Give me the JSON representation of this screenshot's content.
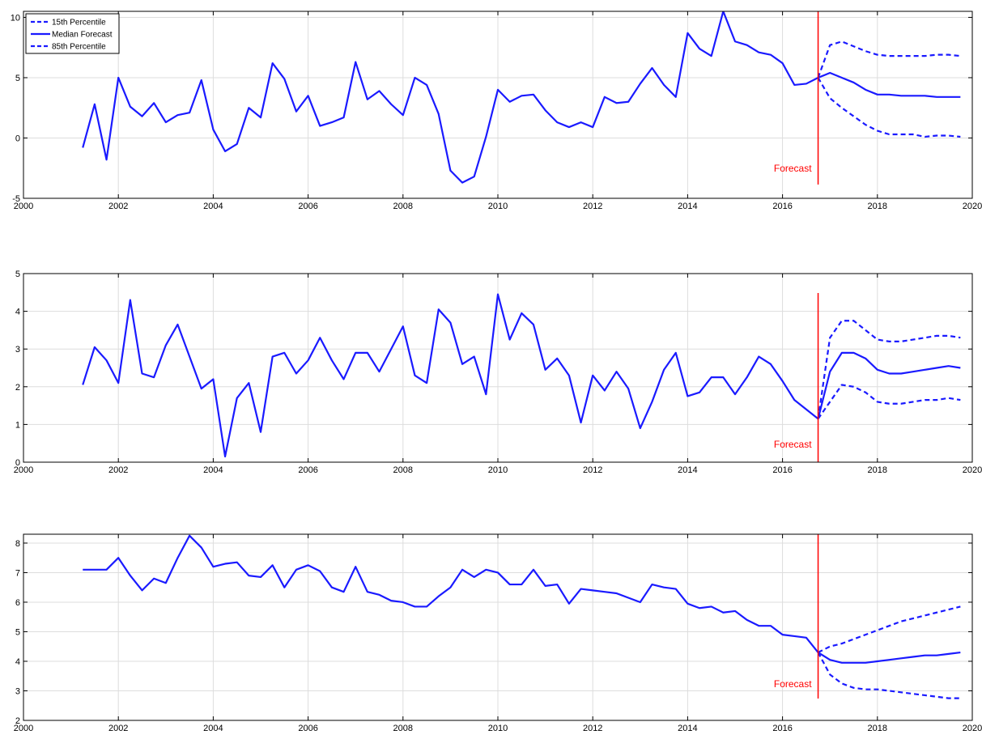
{
  "colors": {
    "series": "#1a1aff",
    "forecast_line": "#ff0000",
    "grid": "#dddddd",
    "axis": "#000000",
    "background": "#ffffff"
  },
  "chart_data": [
    {
      "type": "line",
      "xlim": [
        2000,
        2020
      ],
      "ylim": [
        -5,
        10.5
      ],
      "x_ticks": [
        2000,
        2002,
        2004,
        2006,
        2008,
        2010,
        2012,
        2014,
        2016,
        2018,
        2020
      ],
      "y_ticks": [
        -5,
        0,
        5,
        10
      ],
      "grid": true,
      "legend": {
        "position": "top-left",
        "entries": [
          {
            "label": "15th Percentile",
            "style": "dashed"
          },
          {
            "label": "Median Forecast",
            "style": "solid"
          },
          {
            "label": "85th Percentile",
            "style": "dashed"
          }
        ]
      },
      "forecast_marker": {
        "x": 2016.75,
        "label": "Forecast"
      },
      "history": {
        "x": [
          2001.25,
          2001.5,
          2001.75,
          2002,
          2002.25,
          2002.5,
          2002.75,
          2003,
          2003.25,
          2003.5,
          2003.75,
          2004,
          2004.25,
          2004.5,
          2004.75,
          2005,
          2005.25,
          2005.5,
          2005.75,
          2006,
          2006.25,
          2006.5,
          2006.75,
          2007,
          2007.25,
          2007.5,
          2007.75,
          2008,
          2008.25,
          2008.5,
          2008.75,
          2009,
          2009.25,
          2009.5,
          2009.75,
          2010,
          2010.25,
          2010.5,
          2010.75,
          2011,
          2011.25,
          2011.5,
          2011.75,
          2012,
          2012.25,
          2012.5,
          2012.75,
          2013,
          2013.25,
          2013.5,
          2013.75,
          2014,
          2014.25,
          2014.5,
          2014.75,
          2015,
          2015.25,
          2015.5,
          2015.75,
          2016,
          2016.25,
          2016.5,
          2016.75
        ],
        "y": [
          -0.8,
          2.8,
          -1.8,
          5.0,
          2.6,
          1.8,
          2.9,
          1.3,
          1.9,
          2.1,
          4.8,
          0.7,
          -1.1,
          -0.5,
          2.5,
          1.7,
          6.2,
          4.9,
          2.2,
          3.5,
          1.0,
          1.3,
          1.7,
          6.3,
          3.2,
          3.9,
          2.8,
          1.9,
          5.0,
          4.4,
          2.0,
          -2.7,
          -3.7,
          -3.2,
          0.1,
          4.0,
          3.0,
          3.5,
          3.6,
          2.3,
          1.3,
          0.9,
          1.3,
          0.9,
          3.4,
          2.9,
          3.0,
          4.5,
          5.8,
          4.4,
          3.4,
          8.7,
          7.4,
          6.8,
          10.5,
          8.0,
          7.7,
          7.1,
          6.9,
          6.2,
          4.4,
          4.5,
          5.0
        ]
      },
      "forecast_x": [
        2016.75,
        2017,
        2017.25,
        2017.5,
        2017.75,
        2018,
        2018.25,
        2018.5,
        2018.75,
        2019,
        2019.25,
        2019.5,
        2019.75
      ],
      "series": [
        {
          "name": "15th Percentile",
          "style": "dashed",
          "values": [
            5.0,
            3.3,
            2.5,
            1.8,
            1.1,
            0.6,
            0.3,
            0.3,
            0.3,
            0.1,
            0.2,
            0.2,
            0.1
          ]
        },
        {
          "name": "Median Forecast",
          "style": "solid",
          "values": [
            5.0,
            5.4,
            5.0,
            4.6,
            4.0,
            3.6,
            3.6,
            3.5,
            3.5,
            3.5,
            3.4,
            3.4,
            3.4
          ]
        },
        {
          "name": "85th Percentile",
          "style": "dashed",
          "values": [
            5.0,
            7.7,
            8.0,
            7.6,
            7.2,
            6.9,
            6.8,
            6.8,
            6.8,
            6.8,
            6.9,
            6.9,
            6.8
          ]
        }
      ]
    },
    {
      "type": "line",
      "xlim": [
        2000,
        2020
      ],
      "ylim": [
        0,
        5
      ],
      "x_ticks": [
        2000,
        2002,
        2004,
        2006,
        2008,
        2010,
        2012,
        2014,
        2016,
        2018,
        2020
      ],
      "y_ticks": [
        0,
        1,
        2,
        3,
        4,
        5
      ],
      "grid": true,
      "forecast_marker": {
        "x": 2016.75,
        "label": "Forecast"
      },
      "history": {
        "x": [
          2001.25,
          2001.5,
          2001.75,
          2002,
          2002.25,
          2002.5,
          2002.75,
          2003,
          2003.25,
          2003.5,
          2003.75,
          2004,
          2004.25,
          2004.5,
          2004.75,
          2005,
          2005.25,
          2005.5,
          2005.75,
          2006,
          2006.25,
          2006.5,
          2006.75,
          2007,
          2007.25,
          2007.5,
          2007.75,
          2008,
          2008.25,
          2008.5,
          2008.75,
          2009,
          2009.25,
          2009.5,
          2009.75,
          2010,
          2010.25,
          2010.5,
          2010.75,
          2011,
          2011.25,
          2011.5,
          2011.75,
          2012,
          2012.25,
          2012.5,
          2012.75,
          2013,
          2013.25,
          2013.5,
          2013.75,
          2014,
          2014.25,
          2014.5,
          2014.75,
          2015,
          2015.25,
          2015.5,
          2015.75,
          2016,
          2016.25,
          2016.5,
          2016.75
        ],
        "y": [
          2.05,
          3.05,
          2.7,
          2.1,
          4.3,
          2.35,
          2.25,
          3.1,
          3.65,
          2.8,
          1.95,
          2.2,
          0.15,
          1.7,
          2.1,
          0.8,
          2.8,
          2.9,
          2.35,
          2.7,
          3.3,
          2.7,
          2.2,
          2.9,
          2.9,
          2.4,
          3.0,
          3.6,
          2.3,
          2.1,
          4.05,
          3.7,
          2.6,
          2.8,
          1.8,
          4.45,
          3.25,
          3.95,
          3.65,
          2.45,
          2.75,
          2.3,
          1.05,
          2.3,
          1.9,
          2.4,
          1.95,
          0.9,
          1.6,
          2.45,
          2.9,
          1.75,
          1.85,
          2.25,
          2.25,
          1.8,
          2.25,
          2.8,
          2.6,
          2.15,
          1.65,
          1.4,
          1.15
        ]
      },
      "forecast_x": [
        2016.75,
        2017,
        2017.25,
        2017.5,
        2017.75,
        2018,
        2018.25,
        2018.5,
        2018.75,
        2019,
        2019.25,
        2019.5,
        2019.75
      ],
      "series": [
        {
          "name": "15th Percentile",
          "style": "dashed",
          "values": [
            1.15,
            1.6,
            2.05,
            2.0,
            1.85,
            1.6,
            1.55,
            1.55,
            1.6,
            1.65,
            1.65,
            1.7,
            1.65
          ]
        },
        {
          "name": "Median Forecast",
          "style": "solid",
          "values": [
            1.15,
            2.4,
            2.9,
            2.9,
            2.75,
            2.45,
            2.35,
            2.35,
            2.4,
            2.45,
            2.5,
            2.55,
            2.5
          ]
        },
        {
          "name": "85th Percentile",
          "style": "dashed",
          "values": [
            1.15,
            3.3,
            3.75,
            3.75,
            3.5,
            3.25,
            3.2,
            3.2,
            3.25,
            3.3,
            3.35,
            3.35,
            3.3
          ]
        }
      ]
    },
    {
      "type": "line",
      "xlim": [
        2000,
        2020
      ],
      "ylim": [
        2,
        8.3
      ],
      "x_ticks": [
        2000,
        2002,
        2004,
        2006,
        2008,
        2010,
        2012,
        2014,
        2016,
        2018,
        2020
      ],
      "y_ticks": [
        2,
        3,
        4,
        5,
        6,
        7,
        8
      ],
      "grid": true,
      "forecast_marker": {
        "x": 2016.75,
        "label": "Forecast"
      },
      "history": {
        "x": [
          2001.25,
          2001.5,
          2001.75,
          2002,
          2002.25,
          2002.5,
          2002.75,
          2003,
          2003.25,
          2003.5,
          2003.75,
          2004,
          2004.25,
          2004.5,
          2004.75,
          2005,
          2005.25,
          2005.5,
          2005.75,
          2006,
          2006.25,
          2006.5,
          2006.75,
          2007,
          2007.25,
          2007.5,
          2007.75,
          2008,
          2008.25,
          2008.5,
          2008.75,
          2009,
          2009.25,
          2009.5,
          2009.75,
          2010,
          2010.25,
          2010.5,
          2010.75,
          2011,
          2011.25,
          2011.5,
          2011.75,
          2012,
          2012.25,
          2012.5,
          2012.75,
          2013,
          2013.25,
          2013.5,
          2013.75,
          2014,
          2014.25,
          2014.5,
          2014.75,
          2015,
          2015.25,
          2015.5,
          2015.75,
          2016,
          2016.25,
          2016.5,
          2016.75
        ],
        "y": [
          7.1,
          7.1,
          7.1,
          7.5,
          6.9,
          6.4,
          6.8,
          6.65,
          7.5,
          8.25,
          7.85,
          7.2,
          7.3,
          7.35,
          6.9,
          6.85,
          7.25,
          6.5,
          7.1,
          7.25,
          7.05,
          6.5,
          6.35,
          7.2,
          6.35,
          6.25,
          6.05,
          6.0,
          5.85,
          5.85,
          6.2,
          6.5,
          7.1,
          6.85,
          7.1,
          7.0,
          6.6,
          6.6,
          7.1,
          6.55,
          6.6,
          5.95,
          6.45,
          6.4,
          6.35,
          6.3,
          6.15,
          6.0,
          6.6,
          6.5,
          6.45,
          5.95,
          5.8,
          5.85,
          5.65,
          5.7,
          5.4,
          5.2,
          5.2,
          4.9,
          4.85,
          4.8,
          4.3
        ]
      },
      "forecast_x": [
        2016.75,
        2017,
        2017.25,
        2017.5,
        2017.75,
        2018,
        2018.25,
        2018.5,
        2018.75,
        2019,
        2019.25,
        2019.5,
        2019.75
      ],
      "series": [
        {
          "name": "15th Percentile",
          "style": "dashed",
          "values": [
            4.3,
            3.55,
            3.25,
            3.1,
            3.05,
            3.05,
            3.0,
            2.95,
            2.9,
            2.85,
            2.8,
            2.75,
            2.75
          ]
        },
        {
          "name": "Median Forecast",
          "style": "solid",
          "values": [
            4.3,
            4.05,
            3.95,
            3.95,
            3.95,
            4.0,
            4.05,
            4.1,
            4.15,
            4.2,
            4.2,
            4.25,
            4.3
          ]
        },
        {
          "name": "85th Percentile",
          "style": "dashed",
          "values": [
            4.3,
            4.5,
            4.6,
            4.75,
            4.9,
            5.05,
            5.2,
            5.35,
            5.45,
            5.55,
            5.65,
            5.75,
            5.85
          ]
        }
      ]
    }
  ]
}
